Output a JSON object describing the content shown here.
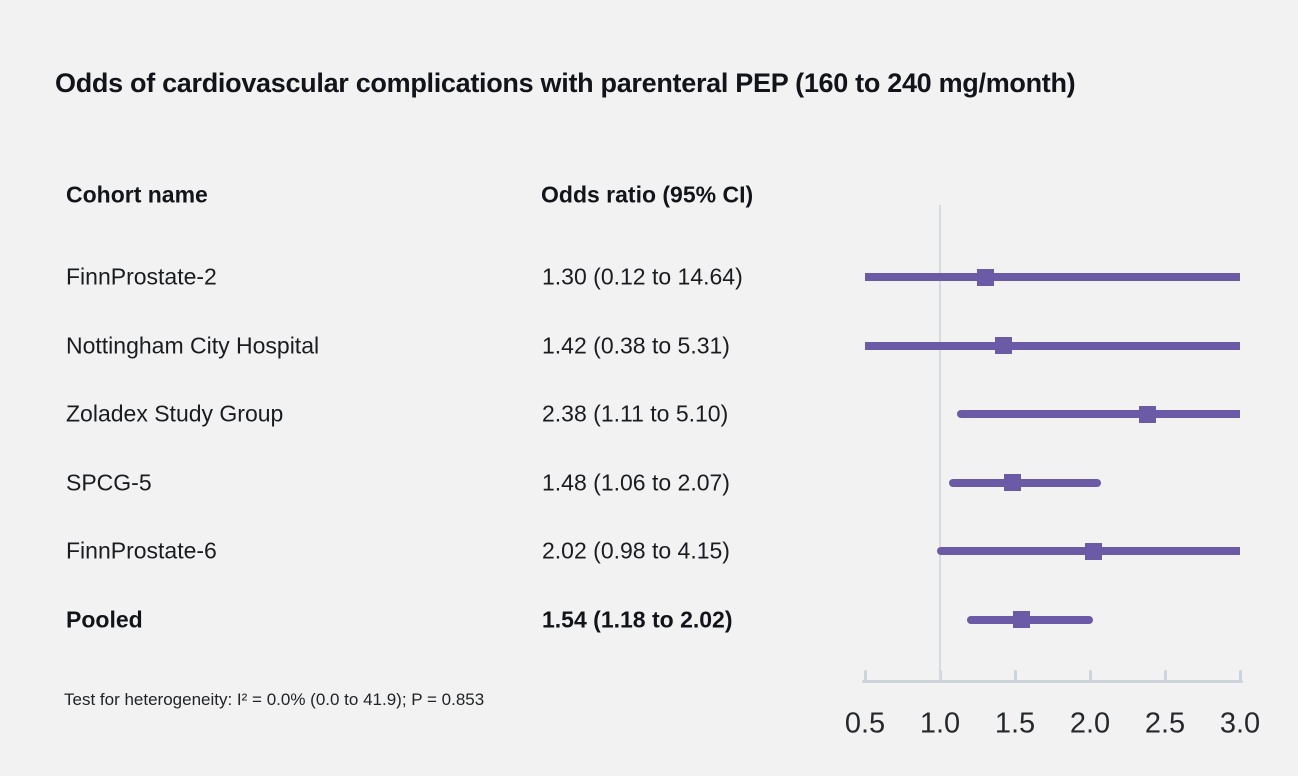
{
  "title": "Odds of cardiovascular complications with parenteral PEP (160 to 240 mg/month)",
  "columns": {
    "cohort_header": "Cohort name",
    "or_header": "Odds ratio (95% CI)"
  },
  "footnote": "Test for heterogeneity: I² = 0.0% (0.0 to 41.9); P = 0.853",
  "colors": {
    "accent_purple": "#6b5ba6",
    "axis_gray": "#cdd3db",
    "reference_line_gray": "#d6dae1",
    "background": "#f2f2f2",
    "text": "#121419"
  },
  "chart_data": {
    "type": "forest",
    "title": "Odds of cardiovascular complications with parenteral PEP (160 to 240 mg/month)",
    "rows": [
      {
        "cohort": "FinnProstate-2",
        "or_text": "1.30 (0.12 to 14.64)",
        "or": 1.3,
        "ci_low": 0.12,
        "ci_high": 14.64,
        "bold": false
      },
      {
        "cohort": "Nottingham City Hospital",
        "or_text": "1.42 (0.38 to 5.31)",
        "or": 1.42,
        "ci_low": 0.38,
        "ci_high": 5.31,
        "bold": false
      },
      {
        "cohort": "Zoladex Study Group",
        "or_text": "2.38 (1.11 to 5.10)",
        "or": 2.38,
        "ci_low": 1.11,
        "ci_high": 5.1,
        "bold": false
      },
      {
        "cohort": "SPCG-5",
        "or_text": "1.48 (1.06 to 2.07)",
        "or": 1.48,
        "ci_low": 1.06,
        "ci_high": 2.07,
        "bold": false
      },
      {
        "cohort": "FinnProstate-6",
        "or_text": "2.02 (0.98 to 4.15)",
        "or": 2.02,
        "ci_low": 0.98,
        "ci_high": 4.15,
        "bold": false
      },
      {
        "cohort": "Pooled",
        "or_text": "1.54 (1.18 to 2.02)",
        "or": 1.54,
        "ci_low": 1.18,
        "ci_high": 2.02,
        "bold": true
      }
    ],
    "x_axis": {
      "scale": "linear",
      "min": 0.5,
      "max": 3.0,
      "reference_line": 1.0,
      "tick_values": [
        0.5,
        1.0,
        1.5,
        2.0,
        2.5,
        3.0
      ],
      "tick_labels": [
        "0.5",
        "1.0",
        "1.5",
        "2.0",
        "2.5",
        "3.0"
      ],
      "grid": false,
      "legend": "none"
    }
  }
}
